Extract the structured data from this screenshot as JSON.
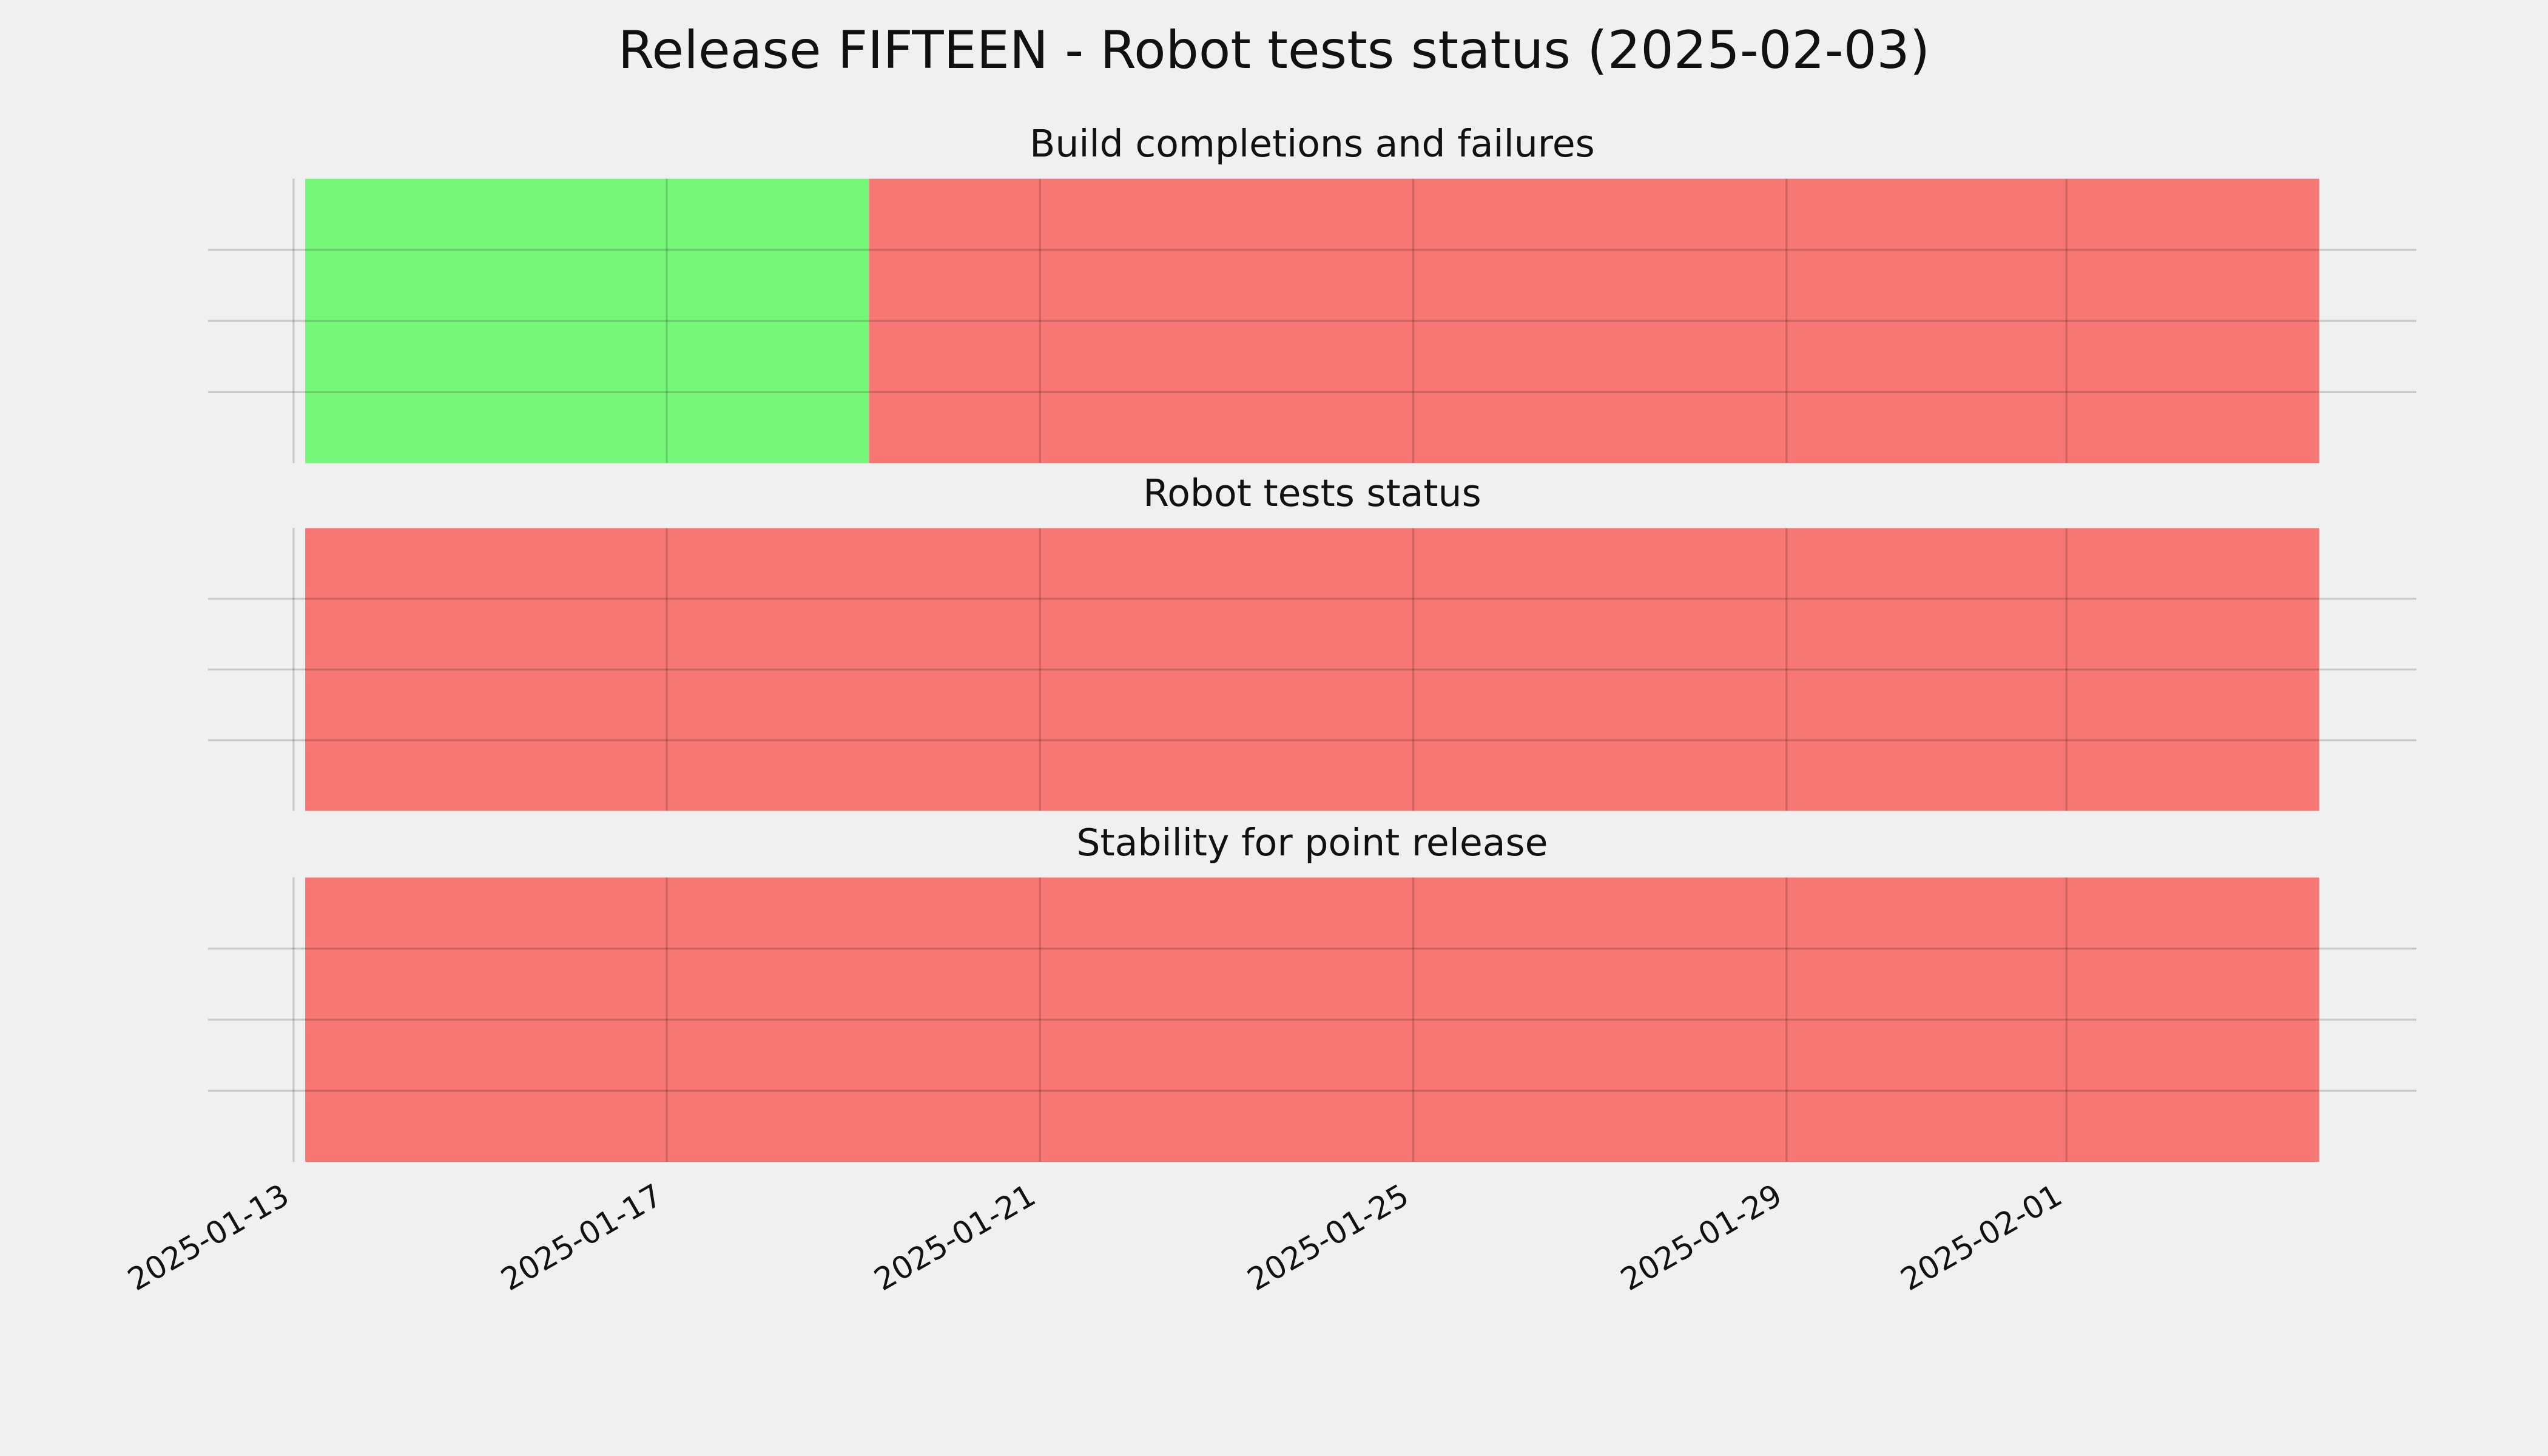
{
  "title": "Release FIFTEEN - Robot tests status (2025-02-03)",
  "chart_data": [
    {
      "type": "timeline",
      "title": "Build completions and failures",
      "spans": [
        {
          "start": "2025-01-13T03:00",
          "end": "2025-01-19T04:00",
          "color": "#77f77a"
        },
        {
          "start": "2025-01-19T04:00",
          "end": "2025-02-03T17:00",
          "color": "#f77775"
        }
      ],
      "xlim": [
        "2025-01-12T02:00",
        "2025-02-04T18:00"
      ],
      "xticks": [
        "2025-01-13",
        "2025-01-17",
        "2025-01-21",
        "2025-01-25",
        "2025-01-29",
        "2025-02-01"
      ],
      "ylim": [
        0,
        1
      ],
      "yticks": [
        0.25,
        0.5,
        0.75
      ],
      "grid": true
    },
    {
      "type": "timeline",
      "title": "Robot tests status",
      "spans": [
        {
          "start": "2025-01-13T03:00",
          "end": "2025-02-03T17:00",
          "color": "#f77775"
        }
      ],
      "xlim": [
        "2025-01-12T02:00",
        "2025-02-04T18:00"
      ],
      "xticks": [
        "2025-01-13",
        "2025-01-17",
        "2025-01-21",
        "2025-01-25",
        "2025-01-29",
        "2025-02-01"
      ],
      "ylim": [
        0,
        1
      ],
      "yticks": [
        0.25,
        0.5,
        0.75
      ],
      "grid": true
    },
    {
      "type": "timeline",
      "title": "Stability for point release",
      "spans": [
        {
          "start": "2025-01-13T03:00",
          "end": "2025-02-03T17:00",
          "color": "#f77775"
        }
      ],
      "xlim": [
        "2025-01-12T02:00",
        "2025-02-04T18:00"
      ],
      "xticks": [
        "2025-01-13",
        "2025-01-17",
        "2025-01-21",
        "2025-01-25",
        "2025-01-29",
        "2025-02-01"
      ],
      "ylim": [
        0,
        1
      ],
      "yticks": [
        0.25,
        0.5,
        0.75
      ],
      "grid": true
    }
  ]
}
